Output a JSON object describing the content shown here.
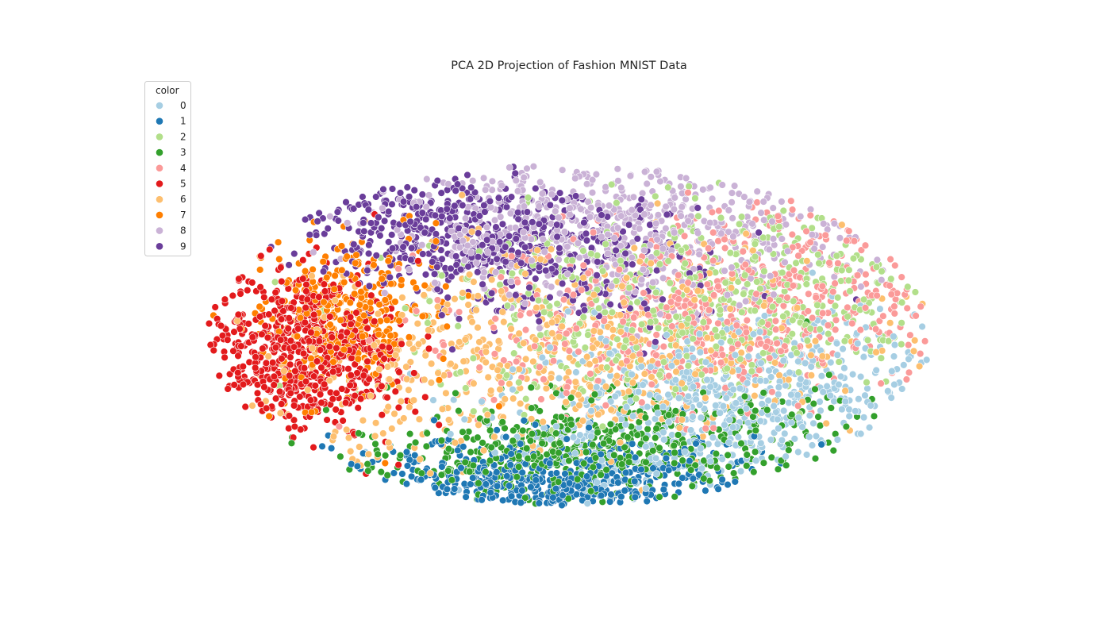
{
  "chart_data": {
    "type": "scatter",
    "title": "PCA 2D Projection of Fashion MNIST Data",
    "xlabel": "",
    "ylabel": "",
    "axes_visible": false,
    "grid": false,
    "legend": {
      "title": "color",
      "placement": "top-left"
    },
    "xlim": [
      -8,
      8
    ],
    "ylim": [
      -6,
      6
    ],
    "series": [
      {
        "name": "0",
        "color": "#a6cee3",
        "center": [
          3.2,
          -2.2
        ],
        "spread": [
          2.3,
          1.1
        ],
        "tilt": 0.15,
        "count": 650
      },
      {
        "name": "1",
        "color": "#1f78b4",
        "center": [
          -0.3,
          -4.3
        ],
        "spread": [
          2.2,
          0.6
        ],
        "tilt": 0.0,
        "count": 500
      },
      {
        "name": "2",
        "color": "#b2df8a",
        "center": [
          2.6,
          0.6
        ],
        "spread": [
          2.8,
          1.3
        ],
        "tilt": 0.12,
        "count": 650
      },
      {
        "name": "3",
        "color": "#33a02c",
        "center": [
          0.4,
          -3.4
        ],
        "spread": [
          2.5,
          0.7
        ],
        "tilt": 0.1,
        "count": 600
      },
      {
        "name": "4",
        "color": "#fb9a99",
        "center": [
          3.2,
          0.4
        ],
        "spread": [
          2.5,
          1.3
        ],
        "tilt": 0.15,
        "count": 650
      },
      {
        "name": "5",
        "color": "#e31a1c",
        "center": [
          -5.5,
          -0.7
        ],
        "spread": [
          1.0,
          1.1
        ],
        "tilt": -0.3,
        "count": 650
      },
      {
        "name": "6",
        "color": "#fdbf6f",
        "center": [
          -0.2,
          -0.9
        ],
        "spread": [
          3.2,
          1.4
        ],
        "tilt": 0.15,
        "count": 650
      },
      {
        "name": "7",
        "color": "#ff7f00",
        "center": [
          -4.6,
          0.2
        ],
        "spread": [
          0.9,
          1.1
        ],
        "tilt": -0.4,
        "count": 350
      },
      {
        "name": "8",
        "color": "#cab2d6",
        "center": [
          0.9,
          2.6
        ],
        "spread": [
          2.4,
          1.0
        ],
        "tilt": 0.0,
        "count": 650
      },
      {
        "name": "9",
        "color": "#6a3d9a",
        "center": [
          -1.8,
          2.3
        ],
        "spread": [
          2.2,
          0.9
        ],
        "tilt": -0.25,
        "count": 650
      }
    ]
  }
}
